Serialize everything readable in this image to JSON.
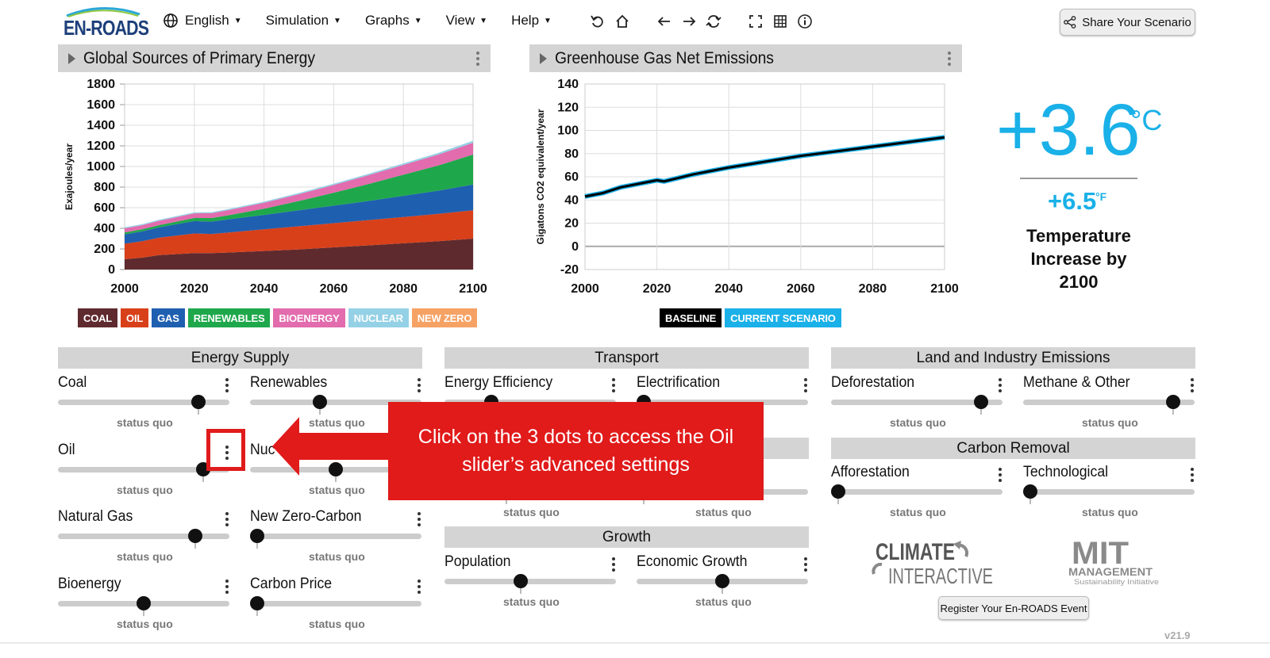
{
  "app": {
    "logo_text": "EN-ROADS",
    "version": "v21.9"
  },
  "menu": [
    {
      "label": "English",
      "icon": "globe-icon"
    },
    {
      "label": "Simulation"
    },
    {
      "label": "Graphs"
    },
    {
      "label": "View"
    },
    {
      "label": "Help"
    }
  ],
  "toolbar_icons": [
    "undo-icon",
    "home-icon",
    "back-arrow-icon",
    "forward-arrow-icon",
    "swap-icon",
    "fullscreen-icon",
    "table-icon",
    "info-icon"
  ],
  "share_button": {
    "label": "Share Your Scenario",
    "icon": "share-icon"
  },
  "graph_left": {
    "title": "Global Sources of Primary Energy",
    "legend": [
      {
        "label": "COAL",
        "color": "#5f2a2e"
      },
      {
        "label": "OIL",
        "color": "#d8401a"
      },
      {
        "label": "GAS",
        "color": "#1f5fb0"
      },
      {
        "label": "RENEWABLES",
        "color": "#1ea84b"
      },
      {
        "label": "BIOENERGY",
        "color": "#e26cad"
      },
      {
        "label": "NUCLEAR",
        "color": "#95d1e6"
      },
      {
        "label": "NEW ZERO",
        "color": "#f6a265"
      }
    ]
  },
  "graph_right": {
    "title": "Greenhouse Gas Net Emissions",
    "legend": [
      {
        "label": "BASELINE",
        "color": "#000000"
      },
      {
        "label": "CURRENT SCENARIO",
        "color": "#1ab0e8"
      }
    ]
  },
  "chart_data": [
    {
      "type": "area",
      "title": "Global Sources of Primary Energy",
      "ylabel": "Exajoules/year",
      "xlabel": "",
      "x": [
        2000,
        2005,
        2010,
        2015,
        2020,
        2025,
        2030,
        2040,
        2050,
        2060,
        2070,
        2080,
        2090,
        2100
      ],
      "xticks": [
        "2000",
        "2020",
        "2040",
        "2060",
        "2080",
        "2100"
      ],
      "yticks": [
        "0",
        "200",
        "400",
        "600",
        "800",
        "1000",
        "1200",
        "1400",
        "1600",
        "1800"
      ],
      "xlim": [
        2000,
        2100
      ],
      "ylim": [
        0,
        1800
      ],
      "grid": true,
      "stacked": true,
      "series": [
        {
          "name": "COAL",
          "color": "#5f2a2e",
          "values": [
            100,
            115,
            140,
            150,
            160,
            160,
            165,
            180,
            195,
            215,
            235,
            255,
            275,
            300
          ]
        },
        {
          "name": "OIL",
          "color": "#d8401a",
          "values": [
            150,
            160,
            170,
            180,
            190,
            185,
            195,
            210,
            225,
            235,
            245,
            255,
            265,
            275
          ]
        },
        {
          "name": "GAS",
          "color": "#1f5fb0",
          "values": [
            90,
            95,
            100,
            110,
            120,
            120,
            128,
            140,
            155,
            170,
            185,
            205,
            225,
            250
          ]
        },
        {
          "name": "RENEWABLES",
          "color": "#1ea84b",
          "values": [
            20,
            20,
            22,
            25,
            30,
            35,
            40,
            60,
            90,
            125,
            165,
            205,
            245,
            290
          ]
        },
        {
          "name": "BIOENERGY",
          "color": "#e26cad",
          "values": [
            40,
            40,
            42,
            44,
            45,
            47,
            50,
            58,
            66,
            75,
            85,
            95,
            105,
            115
          ]
        },
        {
          "name": "NUCLEAR",
          "color": "#95d1e6",
          "values": [
            10,
            10,
            10,
            10,
            10,
            10,
            10,
            11,
            12,
            13,
            14,
            15,
            17,
            20
          ]
        },
        {
          "name": "NEW ZERO",
          "color": "#f6a265",
          "values": [
            0,
            0,
            0,
            0,
            0,
            0,
            0,
            0,
            0,
            0,
            0,
            0,
            0,
            0
          ]
        }
      ]
    },
    {
      "type": "line",
      "title": "Greenhouse Gas Net Emissions",
      "ylabel": "Gigatons CO2 equivalent/year",
      "xlabel": "",
      "xticks": [
        "2000",
        "2020",
        "2040",
        "2060",
        "2080",
        "2100"
      ],
      "yticks": [
        "-20",
        "0",
        "20",
        "40",
        "60",
        "80",
        "100",
        "120",
        "140"
      ],
      "xlim": [
        2000,
        2100
      ],
      "ylim": [
        -20,
        140
      ],
      "grid": true,
      "series": [
        {
          "name": "CURRENT SCENARIO",
          "color": "#1ab0e8",
          "x": [
            2000,
            2005,
            2010,
            2015,
            2020,
            2022,
            2030,
            2040,
            2050,
            2060,
            2070,
            2080,
            2090,
            2100
          ],
          "values": [
            43,
            46,
            51,
            54,
            57,
            56,
            62,
            68,
            73,
            78,
            82,
            86,
            90,
            94
          ]
        },
        {
          "name": "BASELINE",
          "color": "#000000",
          "x": [
            2000,
            2005,
            2010,
            2015,
            2020,
            2022,
            2030,
            2040,
            2050,
            2060,
            2070,
            2080,
            2090,
            2100
          ],
          "values": [
            43,
            46,
            51,
            54,
            57,
            56,
            62,
            68,
            73,
            78,
            82,
            86,
            90,
            94
          ]
        }
      ]
    }
  ],
  "temperature": {
    "celsius": "+3.6",
    "celsius_unit": "°C",
    "fahrenheit": "+6.5",
    "fahrenheit_unit": "°F",
    "label_lines": [
      "Temperature",
      "Increase by",
      "2100"
    ]
  },
  "sections": {
    "energy_supply": "Energy Supply",
    "transport": "Transport",
    "land_industry": "Land and Industry Emissions",
    "carbon_removal": "Carbon Removal",
    "growth": "Growth"
  },
  "sliders": [
    {
      "id": "coal",
      "label": "Coal",
      "status": "status quo",
      "value": 0.85
    },
    {
      "id": "renewables",
      "label": "Renewables",
      "status": "status quo",
      "value": 0.4
    },
    {
      "id": "oil",
      "label": "Oil",
      "status": "status quo",
      "value": 0.88
    },
    {
      "id": "nuclear",
      "label": "Nuc",
      "status": "status quo",
      "value": 0.5
    },
    {
      "id": "natural-gas",
      "label": "Natural Gas",
      "status": "status quo",
      "value": 0.83
    },
    {
      "id": "new-zero-carbon",
      "label": "New Zero-Carbon",
      "status": "status quo",
      "value": 0.0
    },
    {
      "id": "bioenergy",
      "label": "Bioenergy",
      "status": "status quo",
      "value": 0.5
    },
    {
      "id": "carbon-price",
      "label": "Carbon Price",
      "status": "status quo",
      "value": 0.0
    },
    {
      "id": "energy-efficiency",
      "label": "Energy Efficiency",
      "status": "",
      "value": 0.25
    },
    {
      "id": "electrification",
      "label": "Electrification",
      "status": "",
      "value": 0.0
    },
    {
      "id": "transport-row2-left",
      "label": "",
      "status": "status quo",
      "value": 0.35
    },
    {
      "id": "transport-row2-right",
      "label": "",
      "status": "status quo",
      "value": 0.0
    },
    {
      "id": "population",
      "label": "Population",
      "status": "status quo",
      "value": 0.44
    },
    {
      "id": "economic-growth",
      "label": "Economic Growth",
      "status": "status quo",
      "value": 0.5
    },
    {
      "id": "deforestation",
      "label": "Deforestation",
      "status": "status quo",
      "value": 0.91
    },
    {
      "id": "methane-other",
      "label": "Methane & Other",
      "status": "status quo",
      "value": 0.91
    },
    {
      "id": "afforestation",
      "label": "Afforestation",
      "status": "status quo",
      "value": 0.0
    },
    {
      "id": "technological",
      "label": "Technological",
      "status": "status quo",
      "value": 0.0
    }
  ],
  "callout": {
    "text": "Click on the 3 dots to access the Oil slider’s advanced settings"
  },
  "logos": {
    "ci_line1": "CLIMATE",
    "ci_line2": "INTERACTIVE",
    "mit_line1": "MIT",
    "mit_line2": "MANAGEMENT",
    "mit_line3": "Sustainability Initiative"
  },
  "register_button": {
    "label": "Register Your En-ROADS Event"
  }
}
